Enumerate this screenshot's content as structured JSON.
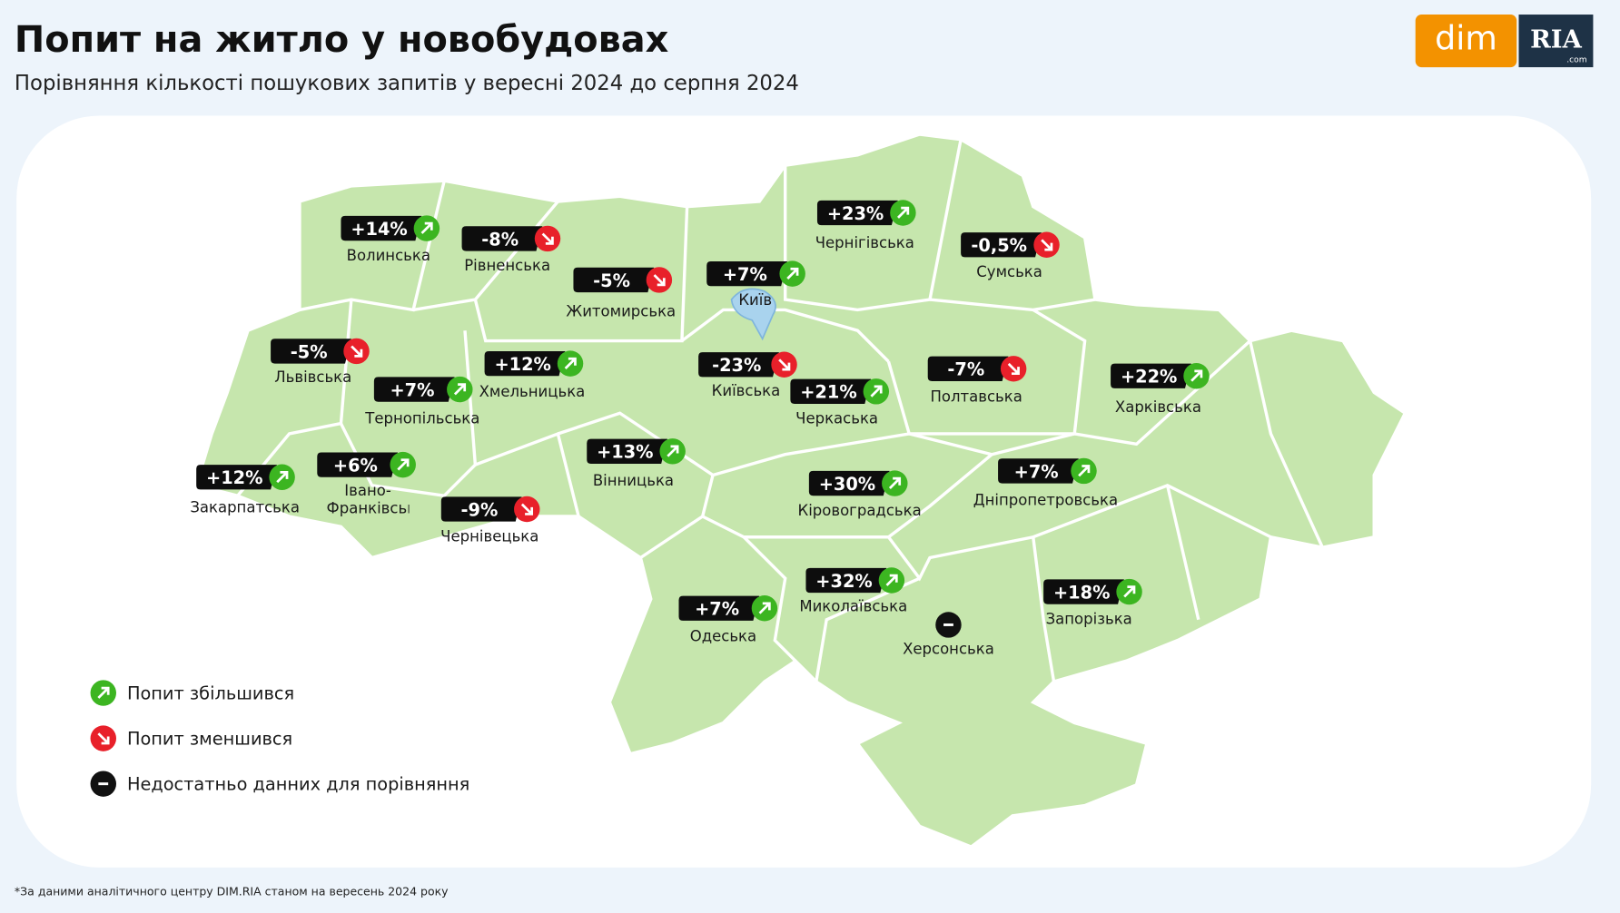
{
  "header": {
    "title": "Попит на житло у новобудовах",
    "subtitle": "Порівняння кількості пошукових запитів у вересні 2024 до серпня 2024"
  },
  "logo": {
    "left": "dim",
    "right": "RIA",
    "domain": ".com"
  },
  "colors": {
    "up": "#3cb521",
    "down": "#e8202a",
    "none": "#111111"
  },
  "regions": [
    {
      "name": "Волинська",
      "value_label": "+14%",
      "trend": "up"
    },
    {
      "name": "Рівненська",
      "value_label": "-8%",
      "trend": "down"
    },
    {
      "name": "Житомирська",
      "value_label": "-5%",
      "trend": "down"
    },
    {
      "name": "Київ",
      "value_label": "+7%",
      "trend": "up"
    },
    {
      "name": "Чернігівська",
      "value_label": "+23%",
      "trend": "up"
    },
    {
      "name": "Сумська",
      "value_label": "-0,5%",
      "trend": "down"
    },
    {
      "name": "Львівська",
      "value_label": "-5%",
      "trend": "down"
    },
    {
      "name": "Тернопільська",
      "value_label": "+7%",
      "trend": "up"
    },
    {
      "name": "Хмельницька",
      "value_label": "+12%",
      "trend": "up"
    },
    {
      "name": "Київська",
      "value_label": "-23%",
      "trend": "down"
    },
    {
      "name": "Черкаська",
      "value_label": "+21%",
      "trend": "up"
    },
    {
      "name": "Полтавська",
      "value_label": "-7%",
      "trend": "down"
    },
    {
      "name": "Харківська",
      "value_label": "+22%",
      "trend": "up"
    },
    {
      "name": "Закарпатська",
      "value_label": "+12%",
      "trend": "up"
    },
    {
      "name": "Івано-Франківська",
      "value_label": "+6%",
      "trend": "up"
    },
    {
      "name": "Вінницька",
      "value_label": "+13%",
      "trend": "up"
    },
    {
      "name": "Кіровоградська",
      "value_label": "+30%",
      "trend": "up"
    },
    {
      "name": "Дніпропетровська",
      "value_label": "+7%",
      "trend": "up"
    },
    {
      "name": "Чернівецька",
      "value_label": "-9%",
      "trend": "down"
    },
    {
      "name": "Миколаївська",
      "value_label": "+32%",
      "trend": "up"
    },
    {
      "name": "Одеська",
      "value_label": "+7%",
      "trend": "up"
    },
    {
      "name": "Херсонська",
      "trend": "none"
    },
    {
      "name": "Запорізька",
      "value_label": "+18%",
      "trend": "up"
    }
  ],
  "legend": [
    {
      "label": "Попит збільшився",
      "trend": "up"
    },
    {
      "label": "Попит зменшився",
      "trend": "down"
    },
    {
      "label": "Недостатньо данних для порівняння",
      "trend": "none"
    }
  ],
  "footnote": "*За даними аналітичного центру DIM.RIA станом на вересень 2024 року"
}
